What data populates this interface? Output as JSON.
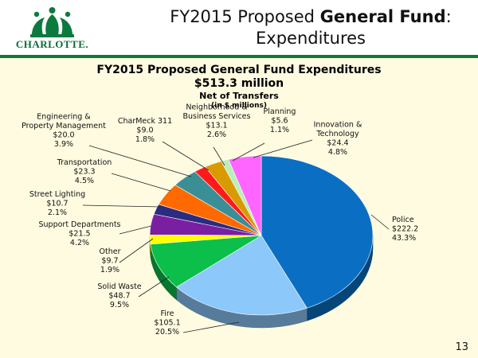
{
  "slide": {
    "title_prefix": "FY2015 Proposed ",
    "title_bold": "General Fund",
    "title_suffix": ":",
    "title_line2": "Expenditures",
    "logo_text": "CHARLOTTE.",
    "page_number": "13"
  },
  "colors": {
    "accent_green": "#0b7a3e",
    "panel_bg": "#fffbe0"
  },
  "chart_data": {
    "type": "pie",
    "title": "FY2015 Proposed General Fund Expenditures",
    "subtitle": "$513.3 million",
    "subtitle2": "Net of Transfers",
    "units_note": "(in $ millions)",
    "total": 513.3,
    "slices": [
      {
        "name": "Police",
        "lines": [
          "Police",
          "$222.2",
          "43.3%"
        ],
        "value": 222.2,
        "percent": 43.3,
        "color": "#0a6fc2"
      },
      {
        "name": "Fire",
        "lines": [
          "Fire",
          "$105.1",
          "20.5%"
        ],
        "value": 105.1,
        "percent": 20.5,
        "color": "#8cc8fa"
      },
      {
        "name": "Solid Waste",
        "lines": [
          "Solid Waste",
          "$48.7",
          "9.5%"
        ],
        "value": 48.7,
        "percent": 9.5,
        "color": "#0bbf4a"
      },
      {
        "name": "Other",
        "lines": [
          "Other",
          "$9.7",
          "1.9%"
        ],
        "value": 9.7,
        "percent": 1.9,
        "color": "#ffff00"
      },
      {
        "name": "Support Departments",
        "lines": [
          "Support Departments",
          "$21.5",
          "4.2%"
        ],
        "value": 21.5,
        "percent": 4.2,
        "color": "#7a1fa2"
      },
      {
        "name": "Street Lighting",
        "lines": [
          "Street Lighting",
          "$10.7",
          "2.1%"
        ],
        "value": 10.7,
        "percent": 2.1,
        "color": "#2b2b80"
      },
      {
        "name": "Transportation",
        "lines": [
          "Transportation",
          "$23.3",
          "4.5%"
        ],
        "value": 23.3,
        "percent": 4.5,
        "color": "#ff6a00"
      },
      {
        "name": "Engineering & Property Management",
        "lines": [
          "Engineering &",
          "Property Management",
          "$20.0",
          "3.9%"
        ],
        "value": 20.0,
        "percent": 3.9,
        "color": "#3a8e96"
      },
      {
        "name": "CharMeck 311",
        "lines": [
          "CharMeck 311",
          "$9.0",
          "1.8%"
        ],
        "value": 9.0,
        "percent": 1.8,
        "color": "#ff1a1a"
      },
      {
        "name": "Neighborhood & Business Services",
        "lines": [
          "Neighborhood &",
          "Business Services",
          "$13.1",
          "2.6%"
        ],
        "value": 13.1,
        "percent": 2.6,
        "color": "#d99a00"
      },
      {
        "name": "Planning",
        "lines": [
          "Planning",
          "$5.6",
          "1.1%"
        ],
        "value": 5.6,
        "percent": 1.1,
        "color": "#b8f0b8"
      },
      {
        "name": "Innovation & Technology",
        "lines": [
          "Innovation &",
          "Technology",
          "$24.4",
          "4.8%"
        ],
        "value": 24.4,
        "percent": 4.8,
        "color": "#ff66ff"
      }
    ]
  }
}
